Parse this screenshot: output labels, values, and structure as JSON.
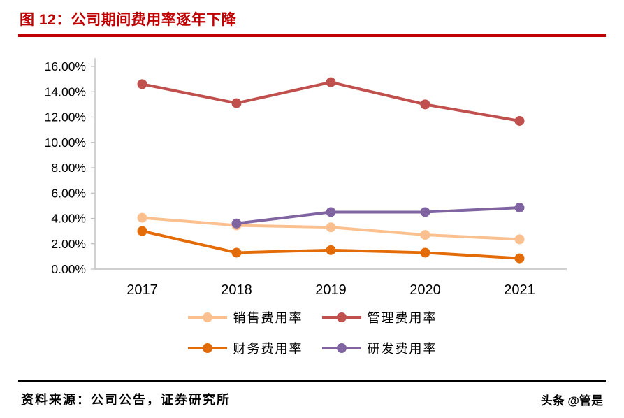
{
  "header": {
    "title": "图 12：公司期间费用率逐年下降"
  },
  "footer": {
    "source": "资料来源：公司公告，证券研究所",
    "watermark": "头条 @管是"
  },
  "colors": {
    "title_accent": "#c00000",
    "axis_gray": "#bfbfbf",
    "text_black": "#000000"
  },
  "chart_data": {
    "type": "line",
    "title": "图 12：公司期间费用率逐年下降",
    "categories": [
      "2017",
      "2018",
      "2019",
      "2020",
      "2021"
    ],
    "series": [
      {
        "name": "销售费用率",
        "color": "#fac08f",
        "values": [
          4.05,
          3.45,
          3.3,
          2.7,
          2.35
        ]
      },
      {
        "name": "管理费用率",
        "color": "#c0504d",
        "values": [
          14.6,
          13.1,
          14.75,
          13.0,
          11.7
        ]
      },
      {
        "name": "财务费用率",
        "color": "#e36c09",
        "values": [
          3.0,
          1.3,
          1.5,
          1.3,
          0.85
        ]
      },
      {
        "name": "研发费用率",
        "color": "#8064a2",
        "values": [
          null,
          3.6,
          4.5,
          4.5,
          4.85
        ]
      }
    ],
    "xlabel": "",
    "ylabel": "",
    "ylim": [
      0,
      16
    ],
    "ytick_step": 2,
    "ytick_suffix": "%",
    "grid": false,
    "legend_position": "bottom"
  }
}
